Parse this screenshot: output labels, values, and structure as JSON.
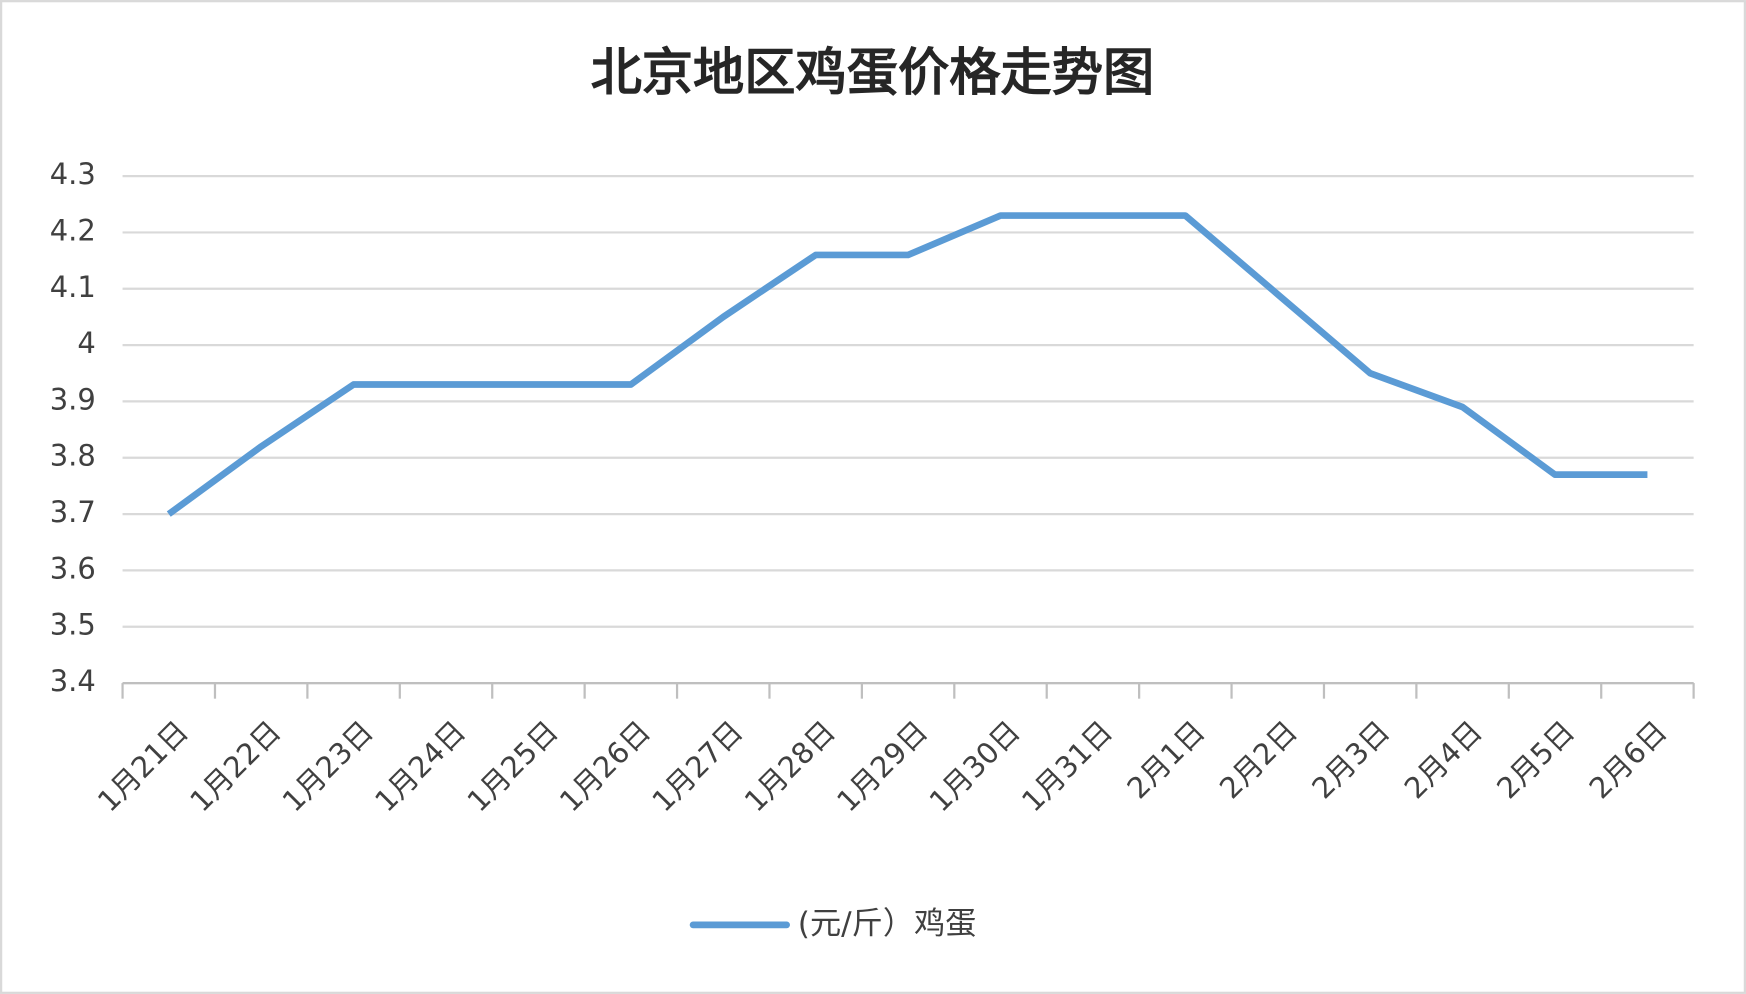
{
  "chart_data": {
    "type": "line",
    "title": "北京地区鸡蛋价格走势图",
    "categories": [
      "1月21日",
      "1月22日",
      "1月23日",
      "1月24日",
      "1月25日",
      "1月26日",
      "1月27日",
      "1月28日",
      "1月29日",
      "1月30日",
      "1月31日",
      "2月1日",
      "2月2日",
      "2月3日",
      "2月4日",
      "2月5日",
      "2月6日"
    ],
    "series": [
      {
        "name": "(元/斤）鸡蛋",
        "color": "#5b9bd5",
        "values": [
          3.7,
          3.82,
          3.93,
          3.93,
          3.93,
          3.93,
          4.05,
          4.16,
          4.16,
          4.23,
          4.23,
          4.23,
          4.09,
          3.95,
          3.89,
          3.77,
          3.77
        ]
      }
    ],
    "ylim": [
      3.4,
      4.3
    ],
    "yticks": [
      3.4,
      3.5,
      3.6,
      3.7,
      3.8,
      3.9,
      4,
      4.1,
      4.2,
      4.3
    ],
    "grid": true,
    "legend": "bottom"
  }
}
